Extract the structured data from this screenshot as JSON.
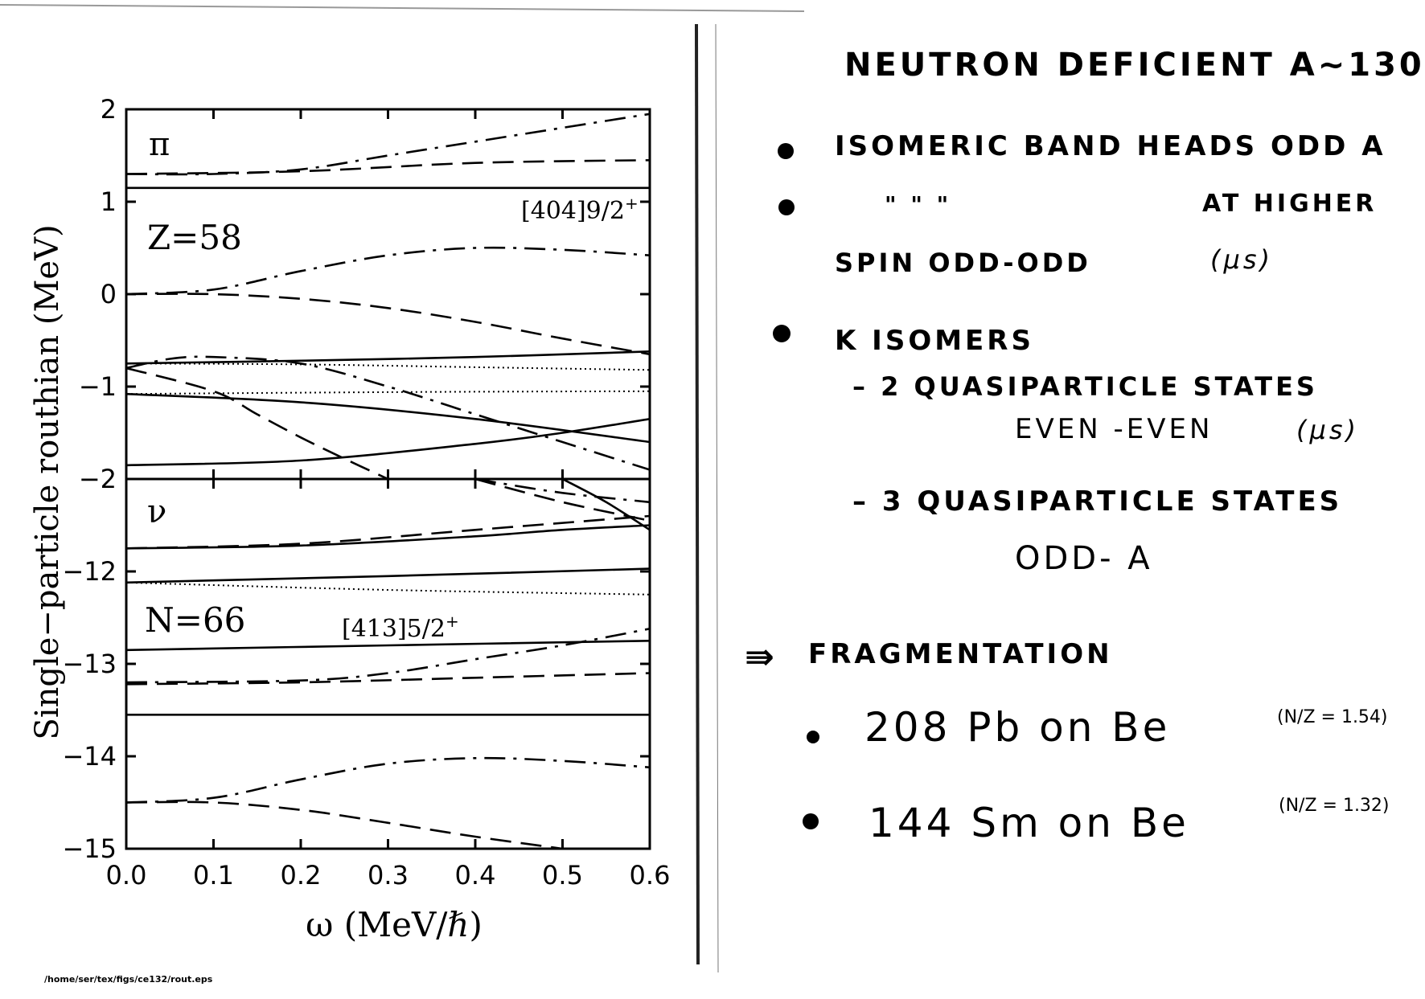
{
  "chart_data": [
    {
      "type": "line",
      "panel": "proton",
      "particle_label": "π",
      "nucleus_label": "Z=58",
      "config_label": "[404]9/2",
      "config_parity": "+",
      "xlim": [
        0.0,
        0.6
      ],
      "ylim": [
        -2,
        2
      ],
      "xticks": [
        "0.0",
        "0.1",
        "0.2",
        "0.3",
        "0.4",
        "0.5",
        "0.6"
      ],
      "yticks": [
        "2",
        "1",
        "0",
        "−1",
        "−2"
      ],
      "yticks_values": [
        2,
        1,
        0,
        -1,
        -2
      ],
      "series": [
        {
          "style": "solid",
          "x": [
            0.0,
            0.6
          ],
          "y": [
            2.0,
            2.0
          ]
        },
        {
          "style": "solid",
          "x": [
            0.0,
            0.6
          ],
          "y": [
            1.15,
            1.15
          ]
        },
        {
          "style": "dashed",
          "x": [
            0.0,
            0.2,
            0.4,
            0.6
          ],
          "y": [
            1.3,
            1.33,
            1.42,
            1.45
          ]
        },
        {
          "style": "dashdot",
          "x": [
            0.0,
            0.1,
            0.2,
            0.3,
            0.4,
            0.5,
            0.6
          ],
          "y": [
            1.3,
            1.3,
            1.35,
            1.5,
            1.65,
            1.8,
            1.95
          ]
        },
        {
          "style": "dashdot",
          "x": [
            0.0,
            0.1,
            0.2,
            0.3,
            0.4,
            0.5,
            0.6
          ],
          "y": [
            0.0,
            0.05,
            0.25,
            0.42,
            0.5,
            0.48,
            0.42
          ]
        },
        {
          "style": "dashed",
          "x": [
            0.0,
            0.1,
            0.2,
            0.3,
            0.4,
            0.5,
            0.6
          ],
          "y": [
            0.0,
            0.0,
            -0.05,
            -0.15,
            -0.3,
            -0.48,
            -0.65
          ]
        },
        {
          "style": "solid",
          "x": [
            0.0,
            0.2,
            0.4,
            0.6
          ],
          "y": [
            -0.75,
            -0.72,
            -0.68,
            -0.62
          ]
        },
        {
          "style": "dotted",
          "x": [
            0.0,
            0.2,
            0.4,
            0.6
          ],
          "y": [
            -0.75,
            -0.76,
            -0.79,
            -0.82
          ]
        },
        {
          "style": "dotted",
          "x": [
            0.0,
            0.3,
            0.6
          ],
          "y": [
            -1.08,
            -1.06,
            -1.05
          ]
        },
        {
          "style": "dashdot",
          "x": [
            0.0,
            0.05,
            0.1,
            0.2,
            0.3,
            0.4,
            0.5,
            0.6
          ],
          "y": [
            -0.8,
            -0.7,
            -0.68,
            -0.75,
            -1.0,
            -1.3,
            -1.6,
            -1.9
          ]
        },
        {
          "style": "dashed",
          "x": [
            0.0,
            0.1,
            0.15,
            0.2,
            0.25,
            0.3
          ],
          "y": [
            -0.8,
            -1.05,
            -1.3,
            -1.55,
            -1.78,
            -2.0
          ]
        },
        {
          "style": "solid",
          "x": [
            0.0,
            0.2,
            0.4,
            0.6
          ],
          "y": [
            -1.08,
            -1.17,
            -1.35,
            -1.6
          ]
        },
        {
          "style": "solid",
          "x": [
            0.0,
            0.2,
            0.4,
            0.5,
            0.6
          ],
          "y": [
            -1.85,
            -1.8,
            -1.62,
            -1.5,
            -1.35
          ]
        }
      ]
    },
    {
      "type": "line",
      "panel": "neutron",
      "particle_label": "ν",
      "nucleus_label": "N=66",
      "config_label": "[413]5/2",
      "config_parity": "+",
      "xlabel": "ω (MeV/ℏ)",
      "xlim": [
        0.0,
        0.6
      ],
      "ylim": [
        -15,
        -11
      ],
      "xticks": [
        "0.0",
        "0.1",
        "0.2",
        "0.3",
        "0.4",
        "0.5",
        "0.6"
      ],
      "yticks": [
        "−12",
        "−13",
        "−14",
        "−15"
      ],
      "yticks_values": [
        -12,
        -13,
        -14,
        -15
      ],
      "series": [
        {
          "style": "solid",
          "x": [
            0.0,
            0.2,
            0.4,
            0.5,
            0.6
          ],
          "y": [
            -11.75,
            -11.72,
            -11.62,
            -11.55,
            -11.5
          ]
        },
        {
          "style": "dashed",
          "x": [
            0.0,
            0.2,
            0.4,
            0.6
          ],
          "y": [
            -11.75,
            -11.7,
            -11.55,
            -11.4
          ]
        },
        {
          "style": "dashdot",
          "x": [
            0.4,
            0.5,
            0.6
          ],
          "y": [
            -11.0,
            -11.15,
            -11.25
          ]
        },
        {
          "style": "dashed",
          "x": [
            0.4,
            0.5,
            0.6
          ],
          "y": [
            -11.0,
            -11.25,
            -11.45
          ]
        },
        {
          "style": "solid",
          "x": [
            0.5,
            0.55,
            0.6
          ],
          "y": [
            -11.0,
            -11.25,
            -11.55
          ]
        },
        {
          "style": "solid",
          "x": [
            0.0,
            0.3,
            0.6
          ],
          "y": [
            -12.12,
            -12.05,
            -11.97
          ]
        },
        {
          "style": "dotted",
          "x": [
            0.0,
            0.3,
            0.6
          ],
          "y": [
            -12.12,
            -12.2,
            -12.25
          ]
        },
        {
          "style": "solid",
          "x": [
            0.0,
            0.3,
            0.6
          ],
          "y": [
            -12.85,
            -12.8,
            -12.75
          ]
        },
        {
          "style": "dashdot",
          "x": [
            0.0,
            0.2,
            0.3,
            0.4,
            0.5,
            0.6
          ],
          "y": [
            -13.2,
            -13.18,
            -13.1,
            -12.95,
            -12.8,
            -12.62
          ]
        },
        {
          "style": "dashed",
          "x": [
            0.0,
            0.2,
            0.4,
            0.6
          ],
          "y": [
            -13.22,
            -13.2,
            -13.15,
            -13.1
          ]
        },
        {
          "style": "solid",
          "x": [
            0.0,
            0.6
          ],
          "y": [
            -13.55,
            -13.55
          ]
        },
        {
          "style": "dashdot",
          "x": [
            0.0,
            0.1,
            0.2,
            0.3,
            0.4,
            0.5,
            0.6
          ],
          "y": [
            -14.5,
            -14.45,
            -14.25,
            -14.08,
            -14.02,
            -14.05,
            -14.12
          ]
        },
        {
          "style": "dashed",
          "x": [
            0.0,
            0.1,
            0.2,
            0.3,
            0.4,
            0.5
          ],
          "y": [
            -14.5,
            -14.5,
            -14.58,
            -14.72,
            -14.87,
            -15.0
          ]
        }
      ]
    }
  ],
  "ylabel": "Single−particle routhian (MeV)",
  "axis_break_label": "−2",
  "footer_path": "/home/ser/tex/figs/ce132/rout.eps",
  "notes": {
    "title": "NEUTRON DEFICIENT A~130",
    "b1": "ISOMERIC BAND HEADS ODD A",
    "b2_ditto": "\"      \"      \"",
    "b2": "AT HIGHER",
    "b2_cont": "SPIN ODD-ODD",
    "b2_unit": "(μs)",
    "b3": "K ISOMERS",
    "b3a": "– 2 QUASIPARTICLE STATES",
    "b3a_cont": "EVEN -EVEN",
    "b3a_unit": "(μs)",
    "b3b": "– 3 QUASIPARTICLE STATES",
    "b3b_cont": "ODD- A",
    "arrow": "⇛",
    "frag": "FRAGMENTATION",
    "f1": "208 Pb on Be",
    "f1_ratio": "(N/Z = 1.54)",
    "f2": "144 Sm on Be",
    "f2_ratio": "(N/Z = 1.32)"
  }
}
